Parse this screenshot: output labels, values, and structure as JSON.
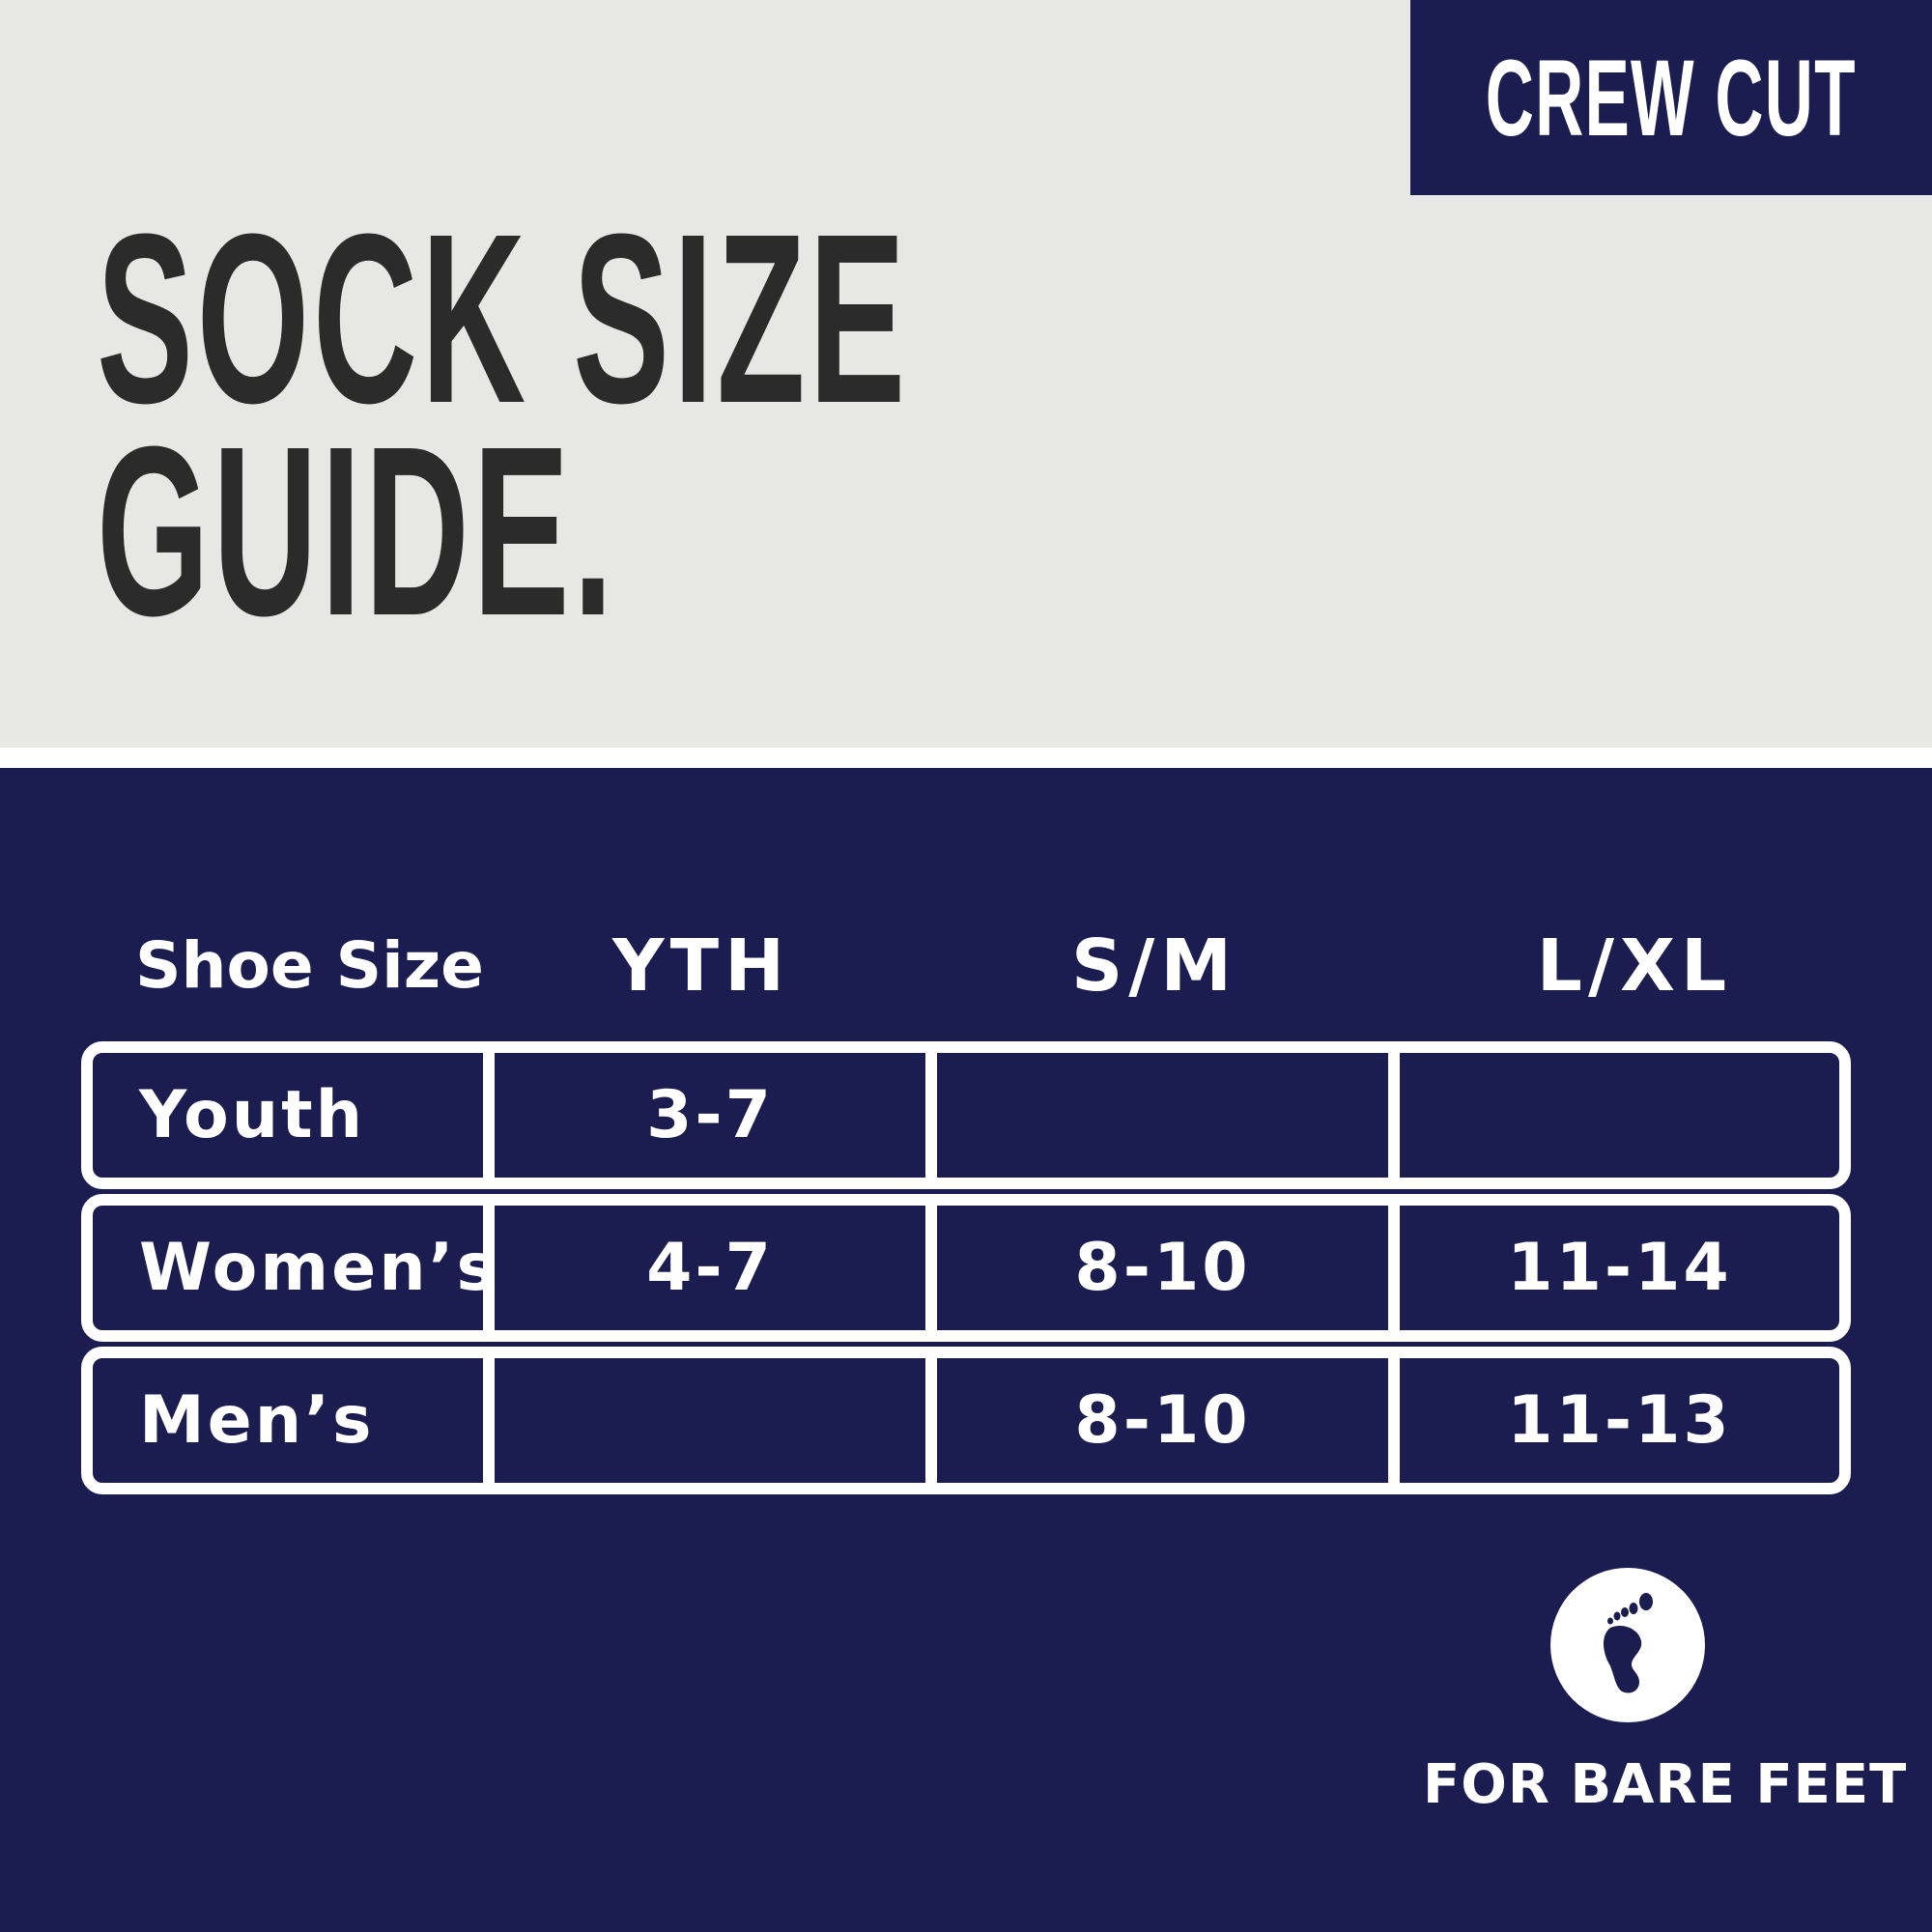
{
  "badge": {
    "label": "CREW CUT"
  },
  "title": {
    "line1": "SOCK SIZE",
    "line2": "GUIDE."
  },
  "table": {
    "headers": [
      "Shoe Size",
      "YTH",
      "S/M",
      "L/XL"
    ],
    "rows": [
      {
        "label": "Youth",
        "values": [
          "3-7",
          "",
          ""
        ]
      },
      {
        "label": "Women’s",
        "values": [
          "4-7",
          "8-10",
          "11-14"
        ]
      },
      {
        "label": "Men’s",
        "values": [
          "",
          "8-10",
          "11-13"
        ]
      }
    ]
  },
  "footer": {
    "icon": "bare-foot-icon",
    "label": "FOR BARE FEET"
  },
  "colors": {
    "navy": "#1b1c4f",
    "light_gray": "#e7e7e5",
    "title_text": "#2b2b2b",
    "white": "#ffffff"
  }
}
